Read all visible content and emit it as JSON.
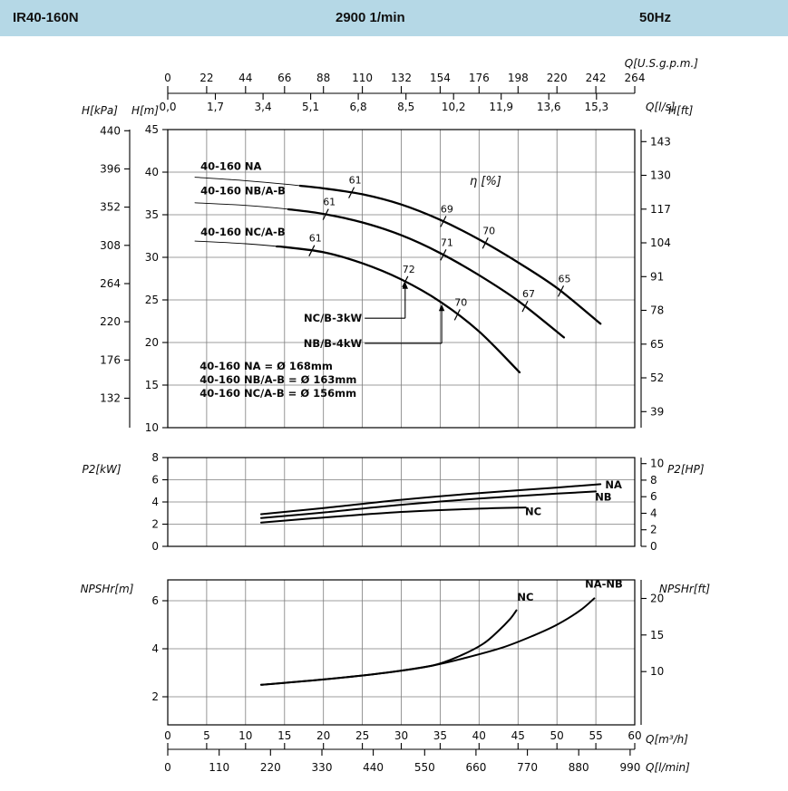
{
  "header": {
    "model": "IR40-160N",
    "speed": "2900 1/min",
    "frequency": "50Hz",
    "bg_color": "#b5d8e6"
  },
  "chart_data": [
    {
      "type": "line",
      "name": "head-flow-curves",
      "x_axes": {
        "top_usgpm": {
          "label": "Q[U.S.g.p.m.]",
          "ticks": [
            "0",
            "22",
            "44",
            "66",
            "88",
            "110",
            "132",
            "154",
            "176",
            "198",
            "220",
            "242",
            "264"
          ]
        },
        "top_ls": {
          "label": "Q[l/s]",
          "ticks": [
            "0,0",
            "1,7",
            "3,4",
            "5,1",
            "6,8",
            "8,5",
            "10,2",
            "11,9",
            "13,6",
            "15,3"
          ],
          "step_m3h": 6.12
        }
      },
      "y_axes": {
        "kpa": {
          "label": "H[kPa]",
          "ticks": [
            440,
            396,
            352,
            308,
            264,
            220,
            176,
            132
          ]
        },
        "m": {
          "label": "H[m]",
          "ticks": [
            45,
            40,
            35,
            30,
            25,
            20,
            15,
            10
          ]
        },
        "ft": {
          "label": "H[ft]",
          "ticks": [
            143,
            130,
            117,
            104,
            91,
            78,
            65,
            52,
            39
          ]
        }
      },
      "x_range_m3h": [
        0,
        60
      ],
      "y_range_m": [
        10,
        45
      ],
      "series": [
        {
          "name": "40-160 NA",
          "thin_until": 17,
          "label_pos": [
            4.2,
            40.7
          ],
          "points": [
            [
              3.5,
              39.4
            ],
            [
              10,
              39.0
            ],
            [
              15,
              38.6
            ],
            [
              20,
              38.1
            ],
            [
              25,
              37.4
            ],
            [
              30,
              36.2
            ],
            [
              35,
              34.4
            ],
            [
              40,
              32.1
            ],
            [
              45,
              29.4
            ],
            [
              50,
              26.4
            ],
            [
              55.6,
              22.2
            ]
          ]
        },
        {
          "name": "40-160 NB/A-B",
          "thin_until": 15.5,
          "label_pos": [
            4.2,
            37.8
          ],
          "points": [
            [
              3.5,
              36.4
            ],
            [
              10,
              36.1
            ],
            [
              15,
              35.7
            ],
            [
              20,
              35.1
            ],
            [
              25,
              34.1
            ],
            [
              30,
              32.6
            ],
            [
              35,
              30.5
            ],
            [
              40,
              27.9
            ],
            [
              45,
              24.9
            ],
            [
              50.9,
              20.6
            ]
          ]
        },
        {
          "name": "40-160 NC/A-B",
          "thin_until": 14,
          "label_pos": [
            4.2,
            33.0
          ],
          "points": [
            [
              3.5,
              31.9
            ],
            [
              10,
              31.6
            ],
            [
              15,
              31.2
            ],
            [
              20,
              30.6
            ],
            [
              25,
              29.3
            ],
            [
              30,
              27.4
            ],
            [
              35,
              24.8
            ],
            [
              40,
              21.3
            ],
            [
              45.2,
              16.5
            ]
          ]
        }
      ],
      "efficiency": {
        "label": "η [%]",
        "label_pos": [
          38.8,
          38.5
        ],
        "ticks": [
          {
            "series": 0,
            "q": 23.6,
            "label": "61"
          },
          {
            "series": 0,
            "q": 35.4,
            "label": "69"
          },
          {
            "series": 0,
            "q": 40.8,
            "label": "70"
          },
          {
            "series": 0,
            "q": 50.5,
            "label": "65"
          },
          {
            "series": 1,
            "q": 20.3,
            "label": "61"
          },
          {
            "series": 1,
            "q": 35.4,
            "label": "71"
          },
          {
            "series": 1,
            "q": 45.9,
            "label": "67"
          },
          {
            "series": 2,
            "q": 18.5,
            "label": "61"
          },
          {
            "series": 2,
            "q": 30.5,
            "label": "72"
          },
          {
            "series": 2,
            "q": 37.2,
            "label": "70"
          }
        ]
      },
      "annotations": [
        {
          "text": "NC/B-3kW",
          "text_end": [
            25.3,
            22.85
          ],
          "hline_to": 30.5,
          "arrow_to_h": 27.1
        },
        {
          "text": "NB/B-4kW",
          "text_end": [
            25.3,
            19.9
          ],
          "hline_to": 35.2,
          "arrow_to_h": 24.5
        }
      ],
      "diameter_notes": [
        "40-160 NA = Ø 168mm",
        "40-160 NB/A-B = Ø 163mm",
        "40-160 NC/A-B = Ø 156mm"
      ]
    },
    {
      "type": "line",
      "name": "power-curves",
      "y_left": {
        "label": "P2[kW]",
        "ticks": [
          8,
          6,
          4,
          2,
          0
        ]
      },
      "y_right": {
        "label": "P2[HP]",
        "ticks": [
          10,
          8,
          6,
          4,
          2,
          0
        ]
      },
      "series": [
        {
          "name": "NA",
          "label_at": [
            56.2,
            5.55
          ],
          "points": [
            [
              12,
              2.9
            ],
            [
              20,
              3.45
            ],
            [
              30,
              4.2
            ],
            [
              40,
              4.8
            ],
            [
              50,
              5.3
            ],
            [
              55.6,
              5.6
            ]
          ]
        },
        {
          "name": "NB",
          "label_at": [
            54.9,
            4.45
          ],
          "points": [
            [
              12,
              2.55
            ],
            [
              20,
              3.05
            ],
            [
              30,
              3.75
            ],
            [
              40,
              4.3
            ],
            [
              50,
              4.75
            ],
            [
              55,
              4.95
            ]
          ]
        },
        {
          "name": "NC",
          "label_at": [
            45.9,
            3.15
          ],
          "points": [
            [
              12,
              2.15
            ],
            [
              20,
              2.6
            ],
            [
              30,
              3.1
            ],
            [
              40,
              3.4
            ],
            [
              46,
              3.5
            ]
          ]
        }
      ]
    },
    {
      "type": "line",
      "name": "npshr-curves",
      "y_left": {
        "label": "NPSHr[m]",
        "ticks": [
          6,
          4,
          2
        ]
      },
      "y_right": {
        "label": "NPSHr[ft]",
        "ticks": [
          20,
          15,
          10
        ]
      },
      "series": [
        {
          "name": "NC",
          "label_at": [
            44.9,
            6.0
          ],
          "points": [
            [
              12,
              2.5
            ],
            [
              20,
              2.72
            ],
            [
              28,
              3.0
            ],
            [
              34,
              3.3
            ],
            [
              37.5,
              3.7
            ],
            [
              40.5,
              4.2
            ],
            [
              42.5,
              4.75
            ],
            [
              44,
              5.25
            ],
            [
              44.8,
              5.6
            ]
          ]
        },
        {
          "name": "NA-NB",
          "label_at": [
            53.6,
            6.55
          ],
          "points": [
            [
              12,
              2.5
            ],
            [
              20,
              2.72
            ],
            [
              28,
              3.0
            ],
            [
              34,
              3.3
            ],
            [
              38,
              3.6
            ],
            [
              43,
              4.05
            ],
            [
              47,
              4.55
            ],
            [
              50,
              5.0
            ],
            [
              53,
              5.6
            ],
            [
              54.8,
              6.1
            ]
          ]
        }
      ]
    }
  ],
  "bottom_axes": {
    "m3h": {
      "label": "Q[m³/h]",
      "ticks": [
        "0",
        "5",
        "10",
        "15",
        "20",
        "25",
        "30",
        "35",
        "40",
        "45",
        "50",
        "55",
        "60"
      ]
    },
    "lmin": {
      "label": "Q[l/min]",
      "ticks": [
        "0",
        "110",
        "220",
        "330",
        "440",
        "550",
        "660",
        "770",
        "880",
        "990"
      ]
    }
  }
}
